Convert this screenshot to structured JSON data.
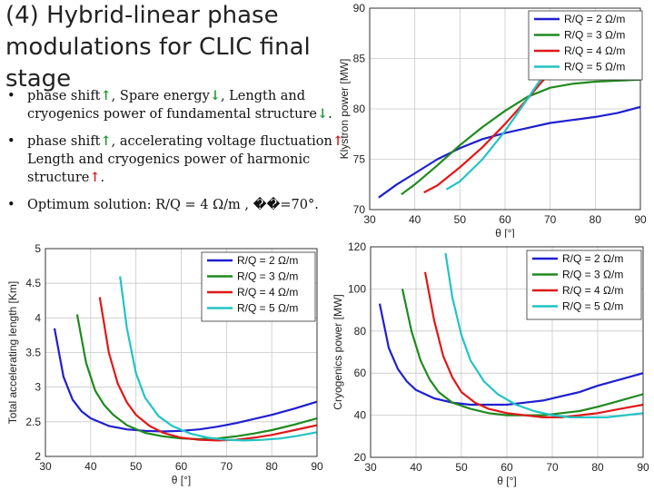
{
  "slide": {
    "title": "(4) Hybrid-linear phase modulations for CLIC final stage",
    "bullets": [
      {
        "parts": [
          {
            "t": "phase shift",
            "c": ""
          },
          {
            "t": "↑",
            "c": "upg"
          },
          {
            "t": ", Spare energy",
            "c": ""
          },
          {
            "t": "↓",
            "c": "downg"
          },
          {
            "t": ", Length and cryogenics power of fundamental structure",
            "c": ""
          },
          {
            "t": "↓",
            "c": "downg"
          },
          {
            "t": ".",
            "c": ""
          }
        ]
      },
      {
        "parts": [
          {
            "t": "phase shift",
            "c": ""
          },
          {
            "t": "↑",
            "c": "upg"
          },
          {
            "t": ", accelerating voltage fluctuation",
            "c": ""
          },
          {
            "t": "↑",
            "c": "up"
          },
          {
            "t": " Length and cryogenics power of harmonic structure",
            "c": ""
          },
          {
            "t": "↑",
            "c": "up"
          },
          {
            "t": ".",
            "c": ""
          }
        ]
      },
      {
        "parts": [
          {
            "t": "Optimum solution: R/Q = 4 Ω/m , ��=70°.",
            "c": ""
          }
        ]
      }
    ],
    "bullet_symbol": "•"
  },
  "colors": {
    "r2": "#1f1fd0",
    "r3": "#1f8a1f",
    "r4": "#e01818",
    "r5": "#22c4c4",
    "up_red": "#d42020",
    "green": "#1a9a2a"
  },
  "chart_data": [
    {
      "id": "klystron",
      "type": "line",
      "ylabel": "Klystron power [MW]",
      "xlabel": "θ [°]",
      "xlim": [
        30,
        90
      ],
      "ylim": [
        70,
        90
      ],
      "xticks": [
        30,
        40,
        50,
        60,
        70,
        80,
        90
      ],
      "yticks": [
        70,
        75,
        80,
        85,
        90
      ],
      "legend": "top-right",
      "series": [
        {
          "name": "R/Q = 2 Ω/m",
          "color_key": "r2",
          "x": [
            32,
            36,
            40,
            45,
            50,
            55,
            60,
            65,
            70,
            75,
            80,
            85,
            90
          ],
          "y": [
            71.2,
            72.5,
            73.6,
            75.0,
            76.1,
            77.0,
            77.6,
            78.1,
            78.6,
            78.9,
            79.2,
            79.6,
            80.2
          ]
        },
        {
          "name": "R/Q = 3 Ω/m",
          "color_key": "r3",
          "x": [
            37,
            40,
            45,
            50,
            55,
            60,
            65,
            70,
            75,
            80,
            85,
            90
          ],
          "y": [
            71.5,
            72.5,
            74.4,
            76.4,
            78.2,
            79.8,
            81.2,
            82.1,
            82.5,
            82.7,
            82.8,
            82.9
          ]
        },
        {
          "name": "R/Q = 4 Ω/m",
          "color_key": "r4",
          "x": [
            42,
            45,
            50,
            55,
            60,
            65,
            68,
            70,
            75,
            80,
            85,
            90
          ],
          "y": [
            71.7,
            72.4,
            74.2,
            76.2,
            78.5,
            81.0,
            82.6,
            83.6,
            84.5,
            84.8,
            84.9,
            85.0
          ]
        },
        {
          "name": "R/Q = 5 Ω/m",
          "color_key": "r5",
          "x": [
            47,
            50,
            55,
            60,
            65,
            68,
            70,
            75,
            80,
            85,
            90
          ],
          "y": [
            72.0,
            72.8,
            75.0,
            77.8,
            81.0,
            83.0,
            84.5,
            86.8,
            87.8,
            88.2,
            88.4
          ]
        }
      ]
    },
    {
      "id": "length",
      "type": "line",
      "ylabel": "Total accelerating length [Km]",
      "xlabel": "θ [°]",
      "xlim": [
        30,
        90
      ],
      "ylim": [
        2,
        5
      ],
      "xticks": [
        30,
        40,
        50,
        60,
        70,
        80,
        90
      ],
      "yticks": [
        2,
        2.5,
        3,
        3.5,
        4,
        4.5,
        5
      ],
      "legend": "top-right",
      "series": [
        {
          "name": "R/Q = 2 Ω/m",
          "color_key": "r2",
          "x": [
            32,
            34,
            36,
            38,
            40,
            44,
            48,
            52,
            56,
            60,
            64,
            68,
            72,
            76,
            80,
            85,
            90
          ],
          "y": [
            3.85,
            3.15,
            2.82,
            2.65,
            2.55,
            2.44,
            2.39,
            2.37,
            2.36,
            2.37,
            2.39,
            2.43,
            2.48,
            2.54,
            2.6,
            2.69,
            2.79
          ]
        },
        {
          "name": "R/Q = 3 Ω/m",
          "color_key": "r3",
          "x": [
            37,
            39,
            41,
            43,
            45,
            48,
            52,
            56,
            60,
            64,
            68,
            72,
            76,
            80,
            85,
            90
          ],
          "y": [
            4.05,
            3.35,
            2.95,
            2.74,
            2.6,
            2.45,
            2.34,
            2.29,
            2.26,
            2.25,
            2.26,
            2.29,
            2.33,
            2.38,
            2.46,
            2.55
          ]
        },
        {
          "name": "R/Q = 4 Ω/m",
          "color_key": "r4",
          "x": [
            42,
            44,
            46,
            48,
            50,
            53,
            56,
            60,
            64,
            68,
            72,
            76,
            80,
            85,
            90
          ],
          "y": [
            4.3,
            3.5,
            3.05,
            2.78,
            2.6,
            2.44,
            2.34,
            2.27,
            2.24,
            2.23,
            2.24,
            2.27,
            2.31,
            2.38,
            2.45
          ]
        },
        {
          "name": "R/Q = 5 Ω/m",
          "color_key": "r5",
          "x": [
            46.5,
            48,
            50,
            52,
            55,
            58,
            62,
            66,
            70,
            74,
            78,
            82,
            86,
            90
          ],
          "y": [
            4.6,
            3.85,
            3.2,
            2.85,
            2.58,
            2.44,
            2.33,
            2.27,
            2.24,
            2.23,
            2.24,
            2.26,
            2.3,
            2.35
          ]
        }
      ]
    },
    {
      "id": "cryo",
      "type": "line",
      "ylabel": "Cryogenics power [MW]",
      "xlabel": "θ [°]",
      "xlim": [
        30,
        90
      ],
      "ylim": [
        20,
        120
      ],
      "xticks": [
        30,
        40,
        50,
        60,
        70,
        80,
        90
      ],
      "yticks": [
        20,
        40,
        60,
        80,
        100,
        120
      ],
      "legend": "top-right",
      "series": [
        {
          "name": "R/Q = 2 Ω/m",
          "color_key": "r2",
          "x": [
            32,
            34,
            36,
            38,
            40,
            44,
            48,
            52,
            56,
            60,
            64,
            68,
            72,
            76,
            80,
            85,
            90
          ],
          "y": [
            93,
            72,
            62,
            56,
            52,
            48,
            46,
            45,
            45,
            45,
            46,
            47,
            49,
            51,
            54,
            57,
            60
          ]
        },
        {
          "name": "R/Q = 3 Ω/m",
          "color_key": "r3",
          "x": [
            37,
            39,
            41,
            43,
            45,
            48,
            52,
            56,
            60,
            64,
            68,
            72,
            76,
            80,
            85,
            90
          ],
          "y": [
            100,
            80,
            66,
            57,
            51,
            46,
            43,
            41,
            40,
            40,
            40,
            41,
            42,
            44,
            47,
            50
          ]
        },
        {
          "name": "R/Q = 4 Ω/m",
          "color_key": "r4",
          "x": [
            42,
            44,
            46,
            48,
            50,
            53,
            56,
            60,
            64,
            68,
            72,
            76,
            80,
            85,
            90
          ],
          "y": [
            108,
            85,
            68,
            58,
            51,
            46,
            43,
            41,
            40,
            39,
            39,
            40,
            41,
            43,
            45
          ]
        },
        {
          "name": "R/Q = 5 Ω/m",
          "color_key": "r5",
          "x": [
            46.5,
            48,
            50,
            52,
            55,
            58,
            62,
            66,
            70,
            74,
            78,
            82,
            86,
            90
          ],
          "y": [
            117,
            96,
            78,
            66,
            56,
            50,
            45,
            42,
            40,
            39,
            39,
            39,
            40,
            41
          ]
        }
      ]
    }
  ]
}
